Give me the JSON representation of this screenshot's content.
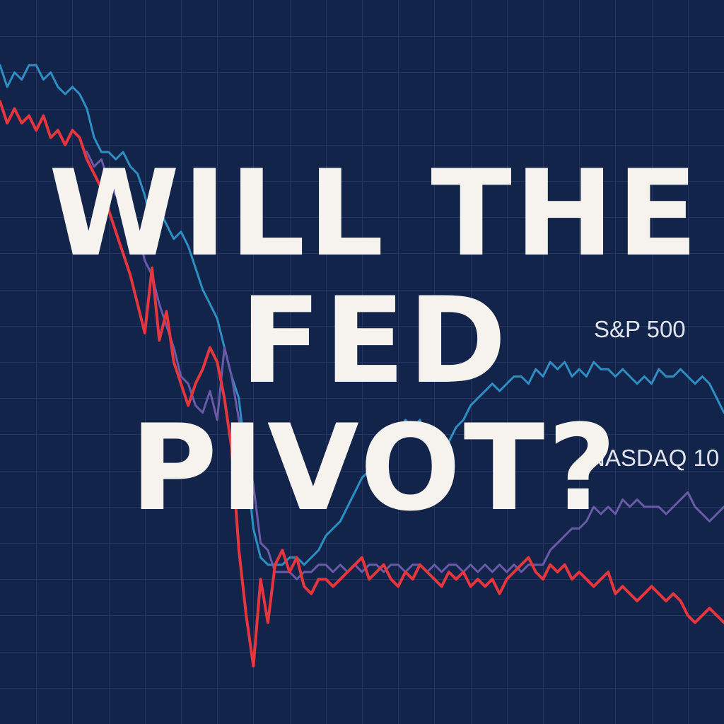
{
  "headline": {
    "line1": "WILL THE",
    "line2": "FED",
    "line3": "PIVOT?"
  },
  "colors": {
    "background": "#13244a",
    "grid": "#23355e",
    "headline": "#f6f3ee"
  },
  "chart_data": {
    "type": "line",
    "title": "",
    "xlabel": "",
    "ylabel": "",
    "grid": true,
    "xlim": [
      0,
      100
    ],
    "ylim": [
      0,
      100
    ],
    "series": [
      {
        "name": "S&P 500",
        "color": "#2d8fc4",
        "x": [
          0,
          1,
          2,
          3,
          4,
          5,
          6,
          7,
          8,
          9,
          10,
          11,
          12,
          13,
          14,
          15,
          16,
          17,
          18,
          19,
          20,
          21,
          22,
          23,
          24,
          25,
          26,
          27,
          28,
          29,
          30,
          31,
          32,
          33,
          34,
          35,
          36,
          37,
          38,
          39,
          40,
          41,
          42,
          43,
          44,
          45,
          46,
          47,
          48,
          49,
          50,
          51,
          52,
          53,
          54,
          55,
          56,
          57,
          58,
          59,
          60,
          61,
          62,
          63,
          64,
          65,
          66,
          67,
          68,
          69,
          70,
          71,
          72,
          73,
          74,
          75,
          76,
          77,
          78,
          79,
          80,
          81,
          82,
          83,
          84,
          85,
          86,
          87,
          88,
          89,
          90,
          91,
          92,
          93,
          94,
          95,
          96,
          97,
          98,
          99,
          100
        ],
        "values": [
          91,
          88,
          90,
          89,
          91,
          91,
          89,
          90,
          88,
          87,
          88,
          87,
          85,
          81,
          79,
          79,
          78,
          79,
          77,
          76,
          73,
          69,
          71,
          69,
          67,
          68,
          66,
          63,
          60,
          58,
          56,
          52,
          48,
          45,
          36,
          27,
          23,
          22,
          22,
          22,
          23,
          23,
          22,
          23,
          24,
          26,
          27,
          28,
          30,
          32,
          34,
          35,
          38,
          40,
          38,
          40,
          42,
          41,
          42,
          40,
          40,
          38,
          39,
          41,
          42,
          44,
          45,
          46,
          47,
          46,
          47,
          48,
          48,
          47,
          49,
          48,
          50,
          49,
          50,
          48,
          49,
          48,
          50,
          49,
          49,
          48,
          49,
          48,
          47,
          48,
          47,
          49,
          48,
          48,
          49,
          48,
          47,
          48,
          47,
          45,
          43
        ]
      },
      {
        "name": "NASDAQ 10",
        "color": "#6a5aa8",
        "x": [
          12,
          13,
          14,
          15,
          16,
          17,
          18,
          19,
          20,
          21,
          22,
          23,
          24,
          25,
          26,
          27,
          28,
          29,
          30,
          31,
          32,
          33,
          34,
          35,
          36,
          37,
          38,
          39,
          40,
          41,
          42,
          43,
          44,
          45,
          46,
          47,
          48,
          49,
          50,
          51,
          52,
          53,
          54,
          55,
          56,
          57,
          58,
          59,
          60,
          61,
          62,
          63,
          64,
          65,
          66,
          67,
          68,
          69,
          70,
          71,
          72,
          73,
          74,
          75,
          76,
          77,
          78,
          79,
          80,
          81,
          82,
          83,
          84,
          85,
          86,
          87,
          88,
          89,
          90,
          91,
          92,
          93,
          94,
          95,
          96,
          97,
          98,
          99,
          100
        ],
        "values": [
          79,
          77,
          78,
          75,
          73,
          74,
          71,
          68,
          64,
          62,
          58,
          55,
          52,
          48,
          47,
          44,
          43,
          46,
          42,
          52,
          48,
          42,
          38,
          33,
          25,
          24,
          21,
          21,
          21,
          20,
          21,
          21,
          22,
          22,
          21,
          22,
          21,
          22,
          21,
          22,
          22,
          21,
          22,
          22,
          21,
          22,
          22,
          21,
          22,
          21,
          22,
          22,
          21,
          22,
          21,
          22,
          21,
          22,
          21,
          22,
          21,
          22,
          22,
          22,
          24,
          25,
          26,
          27,
          27,
          28,
          30,
          29,
          30,
          29,
          31,
          30,
          31,
          30,
          30,
          30,
          29,
          30,
          31,
          32,
          30,
          29,
          28,
          29,
          30
        ]
      },
      {
        "name": "",
        "color": "#e5353d",
        "x": [
          0,
          1,
          2,
          3,
          4,
          5,
          6,
          7,
          8,
          9,
          10,
          11,
          12,
          13,
          14,
          15,
          16,
          17,
          18,
          19,
          20,
          21,
          22,
          23,
          24,
          25,
          26,
          27,
          28,
          29,
          30,
          31,
          32,
          33,
          34,
          35,
          36,
          37,
          38,
          39,
          40,
          41,
          42,
          43,
          44,
          45,
          46,
          47,
          48,
          49,
          50,
          51,
          52,
          53,
          54,
          55,
          56,
          57,
          58,
          59,
          60,
          61,
          62,
          63,
          64,
          65,
          66,
          67,
          68,
          69,
          70,
          71,
          72,
          73,
          74,
          75,
          76,
          77,
          78,
          79,
          80,
          81,
          82,
          83,
          84,
          85,
          86,
          87,
          88,
          89,
          90,
          91,
          92,
          93,
          94,
          95,
          96,
          97,
          98,
          99,
          100
        ],
        "values": [
          86,
          83,
          85,
          83,
          84,
          82,
          84,
          81,
          82,
          80,
          82,
          81,
          78,
          76,
          74,
          71,
          68,
          65,
          62,
          58,
          54,
          63,
          53,
          57,
          50,
          47,
          44,
          47,
          49,
          52,
          50,
          45,
          38,
          24,
          15,
          8,
          20,
          14,
          22,
          24,
          21,
          23,
          19,
          18,
          20,
          20,
          19,
          20,
          21,
          22,
          23,
          20,
          21,
          22,
          20,
          19,
          21,
          20,
          22,
          21,
          20,
          19,
          21,
          20,
          21,
          19,
          20,
          19,
          20,
          18,
          20,
          21,
          22,
          23,
          21,
          20,
          22,
          21,
          22,
          20,
          21,
          20,
          19,
          20,
          21,
          18,
          19,
          18,
          17,
          18,
          19,
          18,
          17,
          18,
          17,
          15,
          14,
          15,
          16,
          15,
          14
        ]
      }
    ],
    "legend_labels": [
      {
        "text": "S&P 500",
        "series": 0
      },
      {
        "text": "NASDAQ 10",
        "series": 1
      }
    ]
  }
}
